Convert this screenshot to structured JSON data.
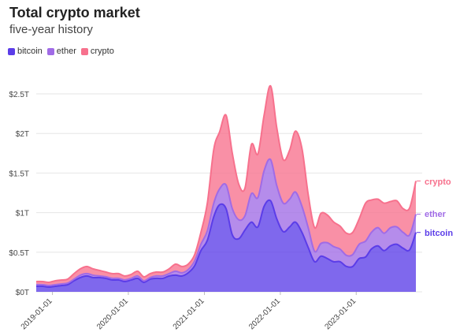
{
  "title": "Total crypto market",
  "subtitle": "five-year history",
  "colors": {
    "bitcoin": "#5b3de8",
    "ether": "#a06be6",
    "crypto": "#f7718d",
    "grid": "#e6e6e6"
  },
  "chart_data": {
    "type": "area",
    "stacked": true,
    "title": "Total crypto market",
    "subtitle": "five-year history",
    "xlabel": "",
    "ylabel": "",
    "ylim": [
      0,
      2.5
    ],
    "yticks": [
      0,
      0.5,
      1,
      1.5,
      2,
      2.5
    ],
    "ytick_labels": [
      "$0T",
      "$0.5T",
      "$1T",
      "$1.5T",
      "$2T",
      "$2.5T"
    ],
    "xtick_labels": [
      "2019-01-01",
      "2020-01-01",
      "2021-01-01",
      "2022-01-01",
      "2023-01-01"
    ],
    "xlim": [
      "2018-10-15",
      "2023-10-15"
    ],
    "grid": true,
    "legend_position": "top-left",
    "x": [
      "2018-10-15",
      "2018-11-15",
      "2018-12-15",
      "2019-01-15",
      "2019-02-15",
      "2019-03-15",
      "2019-04-15",
      "2019-05-15",
      "2019-06-15",
      "2019-07-15",
      "2019-08-15",
      "2019-09-15",
      "2019-10-15",
      "2019-11-15",
      "2019-12-15",
      "2020-01-15",
      "2020-02-15",
      "2020-03-15",
      "2020-04-15",
      "2020-05-15",
      "2020-06-15",
      "2020-07-15",
      "2020-08-15",
      "2020-09-15",
      "2020-10-15",
      "2020-11-15",
      "2020-12-15",
      "2021-01-15",
      "2021-02-15",
      "2021-03-15",
      "2021-04-15",
      "2021-05-15",
      "2021-06-15",
      "2021-07-15",
      "2021-08-15",
      "2021-09-15",
      "2021-10-15",
      "2021-11-15",
      "2021-12-15",
      "2022-01-15",
      "2022-02-15",
      "2022-03-15",
      "2022-04-15",
      "2022-05-15",
      "2022-06-15",
      "2022-07-15",
      "2022-08-15",
      "2022-09-15",
      "2022-10-15",
      "2022-11-15",
      "2022-12-15",
      "2023-01-15",
      "2023-02-15",
      "2023-03-15",
      "2023-04-15",
      "2023-05-15",
      "2023-06-15",
      "2023-07-15",
      "2023-08-15",
      "2023-09-15",
      "2023-10-15"
    ],
    "series": [
      {
        "name": "bitcoin",
        "values": [
          0.07,
          0.07,
          0.06,
          0.07,
          0.08,
          0.09,
          0.14,
          0.18,
          0.2,
          0.18,
          0.18,
          0.17,
          0.15,
          0.15,
          0.13,
          0.15,
          0.17,
          0.12,
          0.16,
          0.17,
          0.17,
          0.2,
          0.21,
          0.2,
          0.24,
          0.33,
          0.52,
          0.65,
          0.95,
          1.1,
          1.05,
          0.72,
          0.67,
          0.78,
          0.88,
          0.82,
          1.08,
          1.15,
          0.92,
          0.76,
          0.82,
          0.88,
          0.75,
          0.56,
          0.38,
          0.45,
          0.42,
          0.38,
          0.38,
          0.32,
          0.32,
          0.42,
          0.44,
          0.54,
          0.58,
          0.52,
          0.58,
          0.6,
          0.55,
          0.53,
          0.75
        ]
      },
      {
        "name": "ether",
        "values": [
          0.02,
          0.02,
          0.02,
          0.02,
          0.02,
          0.02,
          0.02,
          0.03,
          0.03,
          0.03,
          0.02,
          0.02,
          0.02,
          0.02,
          0.02,
          0.02,
          0.03,
          0.02,
          0.02,
          0.03,
          0.03,
          0.03,
          0.05,
          0.04,
          0.04,
          0.06,
          0.08,
          0.12,
          0.17,
          0.2,
          0.3,
          0.33,
          0.24,
          0.18,
          0.36,
          0.37,
          0.45,
          0.52,
          0.42,
          0.36,
          0.35,
          0.38,
          0.33,
          0.25,
          0.13,
          0.16,
          0.2,
          0.19,
          0.16,
          0.14,
          0.15,
          0.18,
          0.2,
          0.21,
          0.23,
          0.22,
          0.23,
          0.22,
          0.2,
          0.19,
          0.23
        ]
      },
      {
        "name": "crypto",
        "values": [
          0.04,
          0.04,
          0.04,
          0.05,
          0.05,
          0.05,
          0.07,
          0.08,
          0.09,
          0.08,
          0.07,
          0.06,
          0.06,
          0.06,
          0.05,
          0.05,
          0.06,
          0.05,
          0.05,
          0.05,
          0.05,
          0.06,
          0.09,
          0.08,
          0.07,
          0.08,
          0.15,
          0.35,
          0.68,
          0.72,
          0.88,
          0.7,
          0.45,
          0.35,
          0.62,
          0.55,
          0.7,
          0.93,
          0.73,
          0.55,
          0.62,
          0.77,
          0.73,
          0.42,
          0.3,
          0.38,
          0.35,
          0.31,
          0.29,
          0.28,
          0.28,
          0.32,
          0.48,
          0.41,
          0.36,
          0.38,
          0.33,
          0.33,
          0.3,
          0.34,
          0.42
        ]
      }
    ],
    "end_labels": [
      "crypto",
      "ether",
      "bitcoin"
    ]
  }
}
